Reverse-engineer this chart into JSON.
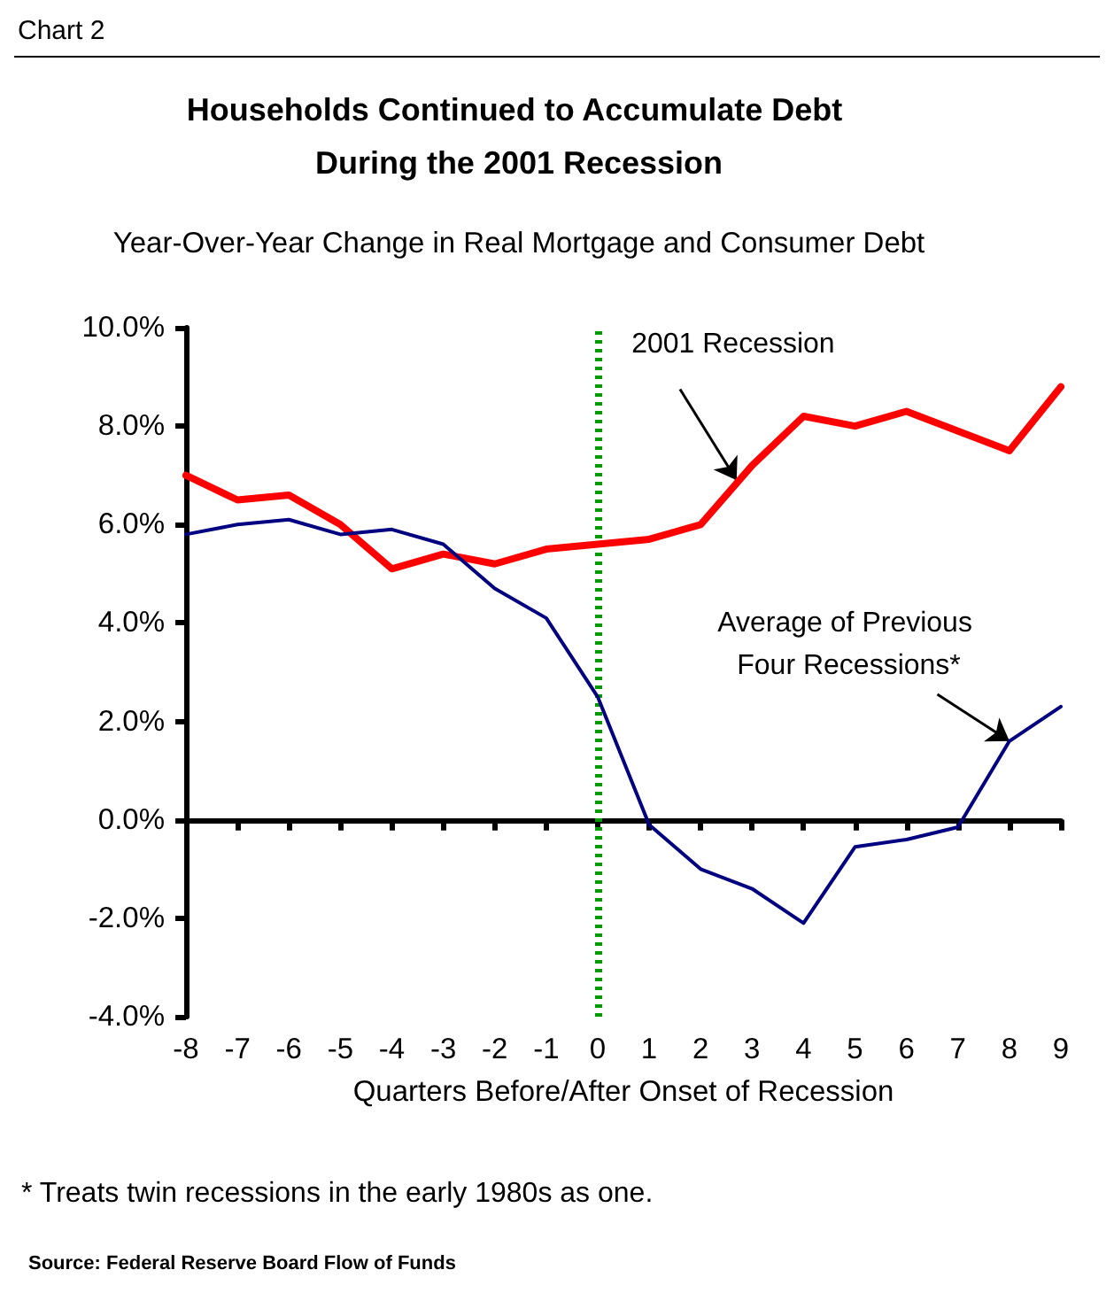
{
  "chart_data": {
    "type": "line",
    "title": "Households Continued to Accumulate Debt During the 2001 Recession",
    "subtitle": "Year-Over-Year Change in Real Mortgage and Consumer Debt",
    "xlabel": "Quarters Before/After Onset of Recession",
    "x": [
      -8,
      -7,
      -6,
      -5,
      -4,
      -3,
      -2,
      -1,
      0,
      1,
      2,
      3,
      4,
      5,
      6,
      7,
      8,
      9
    ],
    "series": [
      {
        "color": "#ff0000",
        "values": [
          7.0,
          6.5,
          6.6,
          6.0,
          5.1,
          5.4,
          5.2,
          5.5,
          5.6,
          5.7,
          6.0,
          7.2,
          8.2,
          8.0,
          8.3,
          7.9,
          7.5,
          8.8
        ]
      },
      {
        "color": "#000080",
        "values": [
          5.8,
          6.0,
          6.1,
          5.8,
          5.9,
          5.6,
          4.7,
          4.1,
          2.5,
          -0.1,
          -1.0,
          -1.4,
          -2.1,
          -0.55,
          -0.4,
          -0.15,
          1.6,
          2.3
        ]
      }
    ],
    "xlim": [
      -8,
      9
    ],
    "xticks": [
      -8,
      -7,
      -6,
      -5,
      -4,
      -3,
      -2,
      -1,
      0,
      1,
      2,
      3,
      4,
      5,
      6,
      7,
      8,
      9
    ],
    "ylim": [
      -4,
      10
    ],
    "yticks": [
      {
        "value": -4,
        "label": "-4.0%"
      },
      {
        "value": -2,
        "label": "-2.0%"
      },
      {
        "value": 0,
        "label": "0.0%"
      },
      {
        "value": 2,
        "label": "2.0%"
      },
      {
        "value": 4,
        "label": "4.0%"
      },
      {
        "value": 6,
        "label": "6.0%"
      },
      {
        "value": 8,
        "label": "8.0%"
      },
      {
        "value": 10,
        "label": "10.0%"
      }
    ],
    "ref_lines": [
      {
        "axis": "x",
        "value": 0,
        "color": "#009900",
        "line_style": "dotted"
      }
    ],
    "annotations": [
      "Chart 2",
      {
        "text": "2001 Recession",
        "x": 2.7,
        "y": 6.9
      },
      {
        "text": "Average of Previous Four Recessions*",
        "x": 8,
        "y": 1.6
      },
      "* Treats twin recessions in the early 1980s as one.",
      "Source: Federal Reserve Board Flow of Funds"
    ],
    "grid": false,
    "marker": "none",
    "line_style": "solid"
  }
}
